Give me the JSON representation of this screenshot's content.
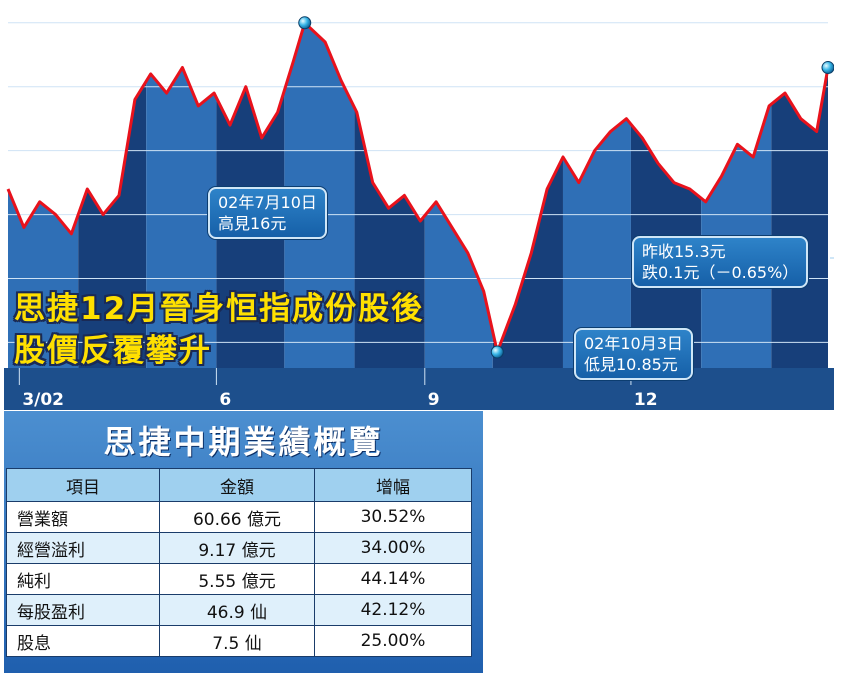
{
  "headline": {
    "line1": "思捷12月晉身恒指成份股後",
    "line2": "股價反覆攀升"
  },
  "callouts": {
    "high": {
      "date": "02年7月10日",
      "text": "高見16元"
    },
    "low": {
      "date": "02年10月3日",
      "text": "低見10.85元"
    },
    "close": {
      "line1": "昨收15.3元",
      "line2": "跌0.1元（－0.65%）"
    }
  },
  "colors": {
    "line": "#e8121c",
    "bg_dark": "#0e2f63",
    "bg_mid": "#2a6bb3",
    "gridline": "#cfe3f5",
    "panel": "#2f73bf",
    "header_cell": "#9fd0ef",
    "headline_text": "#ffe000"
  },
  "chart_data": {
    "type": "line",
    "title": "思捷12月晉身恒指成份股後股價反覆攀升",
    "x_tick_labels": [
      "3/02",
      "6",
      "9",
      "12"
    ],
    "x": [
      "2002-03-01",
      "2002-03-08",
      "2002-03-15",
      "2002-03-22",
      "2002-03-29",
      "2002-04-05",
      "2002-04-12",
      "2002-04-19",
      "2002-04-26",
      "2002-05-03",
      "2002-05-10",
      "2002-05-17",
      "2002-05-24",
      "2002-05-31",
      "2002-06-07",
      "2002-06-14",
      "2002-06-21",
      "2002-06-28",
      "2002-07-05",
      "2002-07-10",
      "2002-07-19",
      "2002-07-26",
      "2002-08-02",
      "2002-08-09",
      "2002-08-16",
      "2002-08-23",
      "2002-08-30",
      "2002-09-06",
      "2002-09-13",
      "2002-09-20",
      "2002-09-27",
      "2002-10-03",
      "2002-10-11",
      "2002-10-18",
      "2002-10-25",
      "2002-11-01",
      "2002-11-08",
      "2002-11-15",
      "2002-11-22",
      "2002-11-29",
      "2002-12-06",
      "2002-12-13",
      "2002-12-20",
      "2002-12-27",
      "2003-01-03",
      "2003-01-10",
      "2003-01-17",
      "2003-01-24",
      "2003-01-31",
      "2003-02-07",
      "2003-02-14",
      "2003-02-21",
      "2003-02-26"
    ],
    "values": [
      13.4,
      12.8,
      13.2,
      13.0,
      12.7,
      13.4,
      13.0,
      13.3,
      14.8,
      15.2,
      14.9,
      15.3,
      14.7,
      14.9,
      14.4,
      15.0,
      14.2,
      14.6,
      15.4,
      16.0,
      15.7,
      15.1,
      14.6,
      13.5,
      13.1,
      13.3,
      12.9,
      13.2,
      12.8,
      12.4,
      11.8,
      10.85,
      11.6,
      12.4,
      13.4,
      13.9,
      13.5,
      14.0,
      14.3,
      14.5,
      14.2,
      13.8,
      13.5,
      13.4,
      13.2,
      13.6,
      14.1,
      13.9,
      14.7,
      14.9,
      14.5,
      14.3,
      15.3
    ],
    "ylim": [
      10.6,
      16.2
    ],
    "annotations": [
      {
        "date": "02年7月10日",
        "label": "高見16元",
        "value": 16.0
      },
      {
        "date": "02年10月3日",
        "label": "低見10.85元",
        "value": 10.85
      },
      {
        "label": "昨收15.3元",
        "value": 15.3
      }
    ]
  },
  "table": {
    "title": "思捷中期業績概覽",
    "headers": [
      "項目",
      "金額",
      "增幅"
    ],
    "rows": [
      [
        "營業額",
        "60.66 億元",
        "30.52%"
      ],
      [
        "經營溢利",
        "9.17 億元",
        "34.00%"
      ],
      [
        "純利",
        "5.55 億元",
        "44.14%"
      ],
      [
        "每股盈利",
        "46.9 仙",
        "42.12%"
      ],
      [
        "股息",
        "7.5 仙",
        "25.00%"
      ]
    ]
  }
}
